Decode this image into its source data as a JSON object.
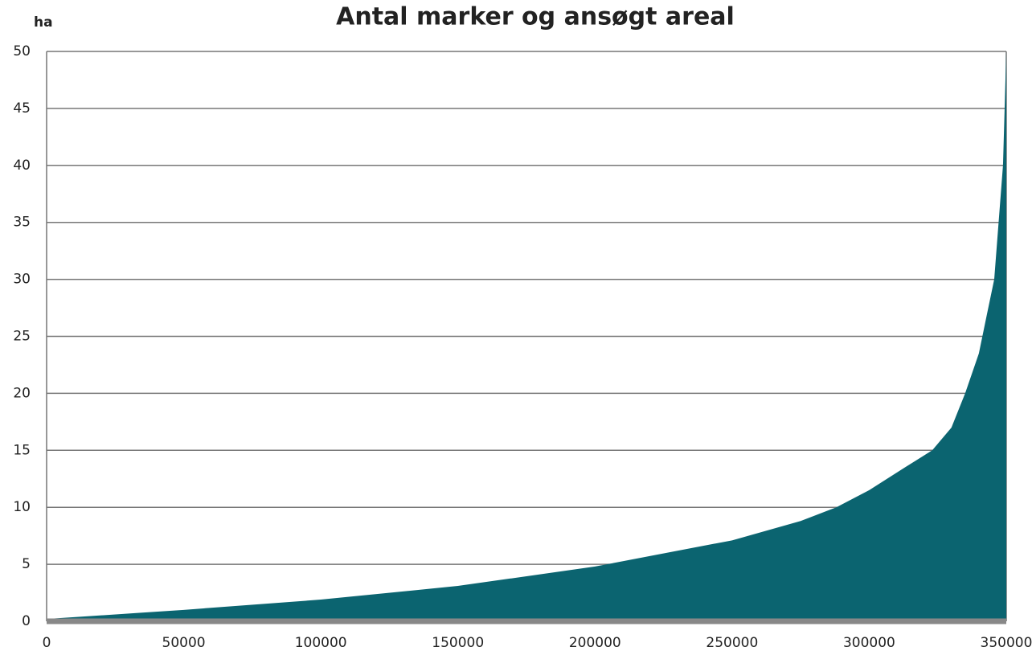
{
  "chart_data": {
    "type": "area",
    "title": "Antal marker og ansøgt areal",
    "y_label": "ha",
    "series": [
      {
        "color": "#0b6470",
        "x": [
          0,
          50000,
          100000,
          150000,
          200000,
          250000,
          275000,
          288000,
          300000,
          313000,
          323000,
          330000,
          335000,
          340000,
          343000,
          345600,
          348800,
          350000
        ],
        "values": [
          0.2,
          1.0,
          1.9,
          3.1,
          4.8,
          7.1,
          8.8,
          10,
          11.5,
          13.5,
          15,
          17,
          20,
          23.5,
          27,
          30,
          40,
          50
        ]
      }
    ],
    "xlim": [
      0,
      350000
    ],
    "xticks": [
      0,
      50000,
      100000,
      150000,
      200000,
      250000,
      300000,
      350000
    ],
    "ylim": [
      0,
      50
    ],
    "yticks": [
      0,
      5,
      10,
      15,
      20,
      25,
      30,
      35,
      40,
      45,
      50
    ],
    "grid": true
  }
}
